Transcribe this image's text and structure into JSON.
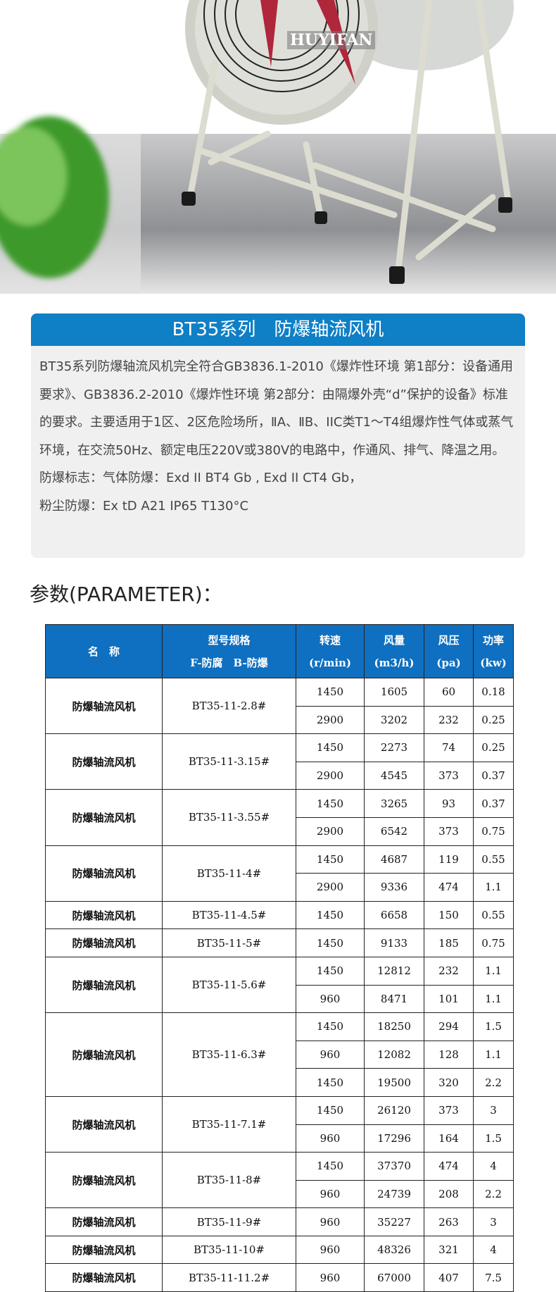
{
  "hero": {
    "brand_label": "HUYIFAN"
  },
  "intro": {
    "title": "BT35系列　防爆轴流风机",
    "paragraphs": [
      "BT35系列防爆轴流风机完全符合GB3836.1-2010《爆炸性环境 第1部分：设备通用要求》、GB3836.2-2010《爆炸性环境 第2部分：由隔爆外壳“d”保护的设备》标准的要求。主要适用于1区、2区危险场所，ⅡA、ⅡB、IIC类T1～T4组爆炸性气体或蒸气环境，在交流50Hz、额定电压220V或380V的电路中，作通风、排气、降温之用。",
      "防爆标志：气体防爆：Exd II BT4 Gb , Exd II CT4 Gb，",
      "粉尘防爆：Ex tD A21 IP65 T130°C"
    ]
  },
  "param_title": "参数(PARAMETER)：",
  "table": {
    "headers": [
      {
        "line1": "名　称",
        "line2": ""
      },
      {
        "line1": "型号规格",
        "line2": "F-防腐　B-防爆"
      },
      {
        "line1": "转速",
        "line2": "(r/min)"
      },
      {
        "line1": "风量",
        "line2": "(m3/h)"
      },
      {
        "line1": "风压",
        "line2": "(pa)"
      },
      {
        "line1": "功率",
        "line2": "(kw)"
      }
    ],
    "groups": [
      {
        "name": "防爆轴流风机",
        "model": "BT35-11-2.8#",
        "rows": [
          [
            "1450",
            "1605",
            "60",
            "0.18"
          ],
          [
            "2900",
            "3202",
            "232",
            "0.25"
          ]
        ]
      },
      {
        "name": "防爆轴流风机",
        "model": "BT35-11-3.15#",
        "rows": [
          [
            "1450",
            "2273",
            "74",
            "0.25"
          ],
          [
            "2900",
            "4545",
            "373",
            "0.37"
          ]
        ]
      },
      {
        "name": "防爆轴流风机",
        "model": "BT35-11-3.55#",
        "rows": [
          [
            "1450",
            "3265",
            "93",
            "0.37"
          ],
          [
            "2900",
            "6542",
            "373",
            "0.75"
          ]
        ]
      },
      {
        "name": "防爆轴流风机",
        "model": "BT35-11-4#",
        "rows": [
          [
            "1450",
            "4687",
            "119",
            "0.55"
          ],
          [
            "2900",
            "9336",
            "474",
            "1.1"
          ]
        ]
      },
      {
        "name": "防爆轴流风机",
        "model": "BT35-11-4.5#",
        "rows": [
          [
            "1450",
            "6658",
            "150",
            "0.55"
          ]
        ]
      },
      {
        "name": "防爆轴流风机",
        "model": "BT35-11-5#",
        "rows": [
          [
            "1450",
            "9133",
            "185",
            "0.75"
          ]
        ]
      },
      {
        "name": "防爆轴流风机",
        "model": "BT35-11-5.6#",
        "rows": [
          [
            "1450",
            "12812",
            "232",
            "1.1"
          ],
          [
            "960",
            "8471",
            "101",
            "1.1"
          ]
        ]
      },
      {
        "name": "防爆轴流风机",
        "model": "BT35-11-6.3#",
        "rows": [
          [
            "1450",
            "18250",
            "294",
            "1.5"
          ],
          [
            "960",
            "12082",
            "128",
            "1.1"
          ],
          [
            "1450",
            "19500",
            "320",
            "2.2"
          ]
        ]
      },
      {
        "name": "防爆轴流风机",
        "model": "BT35-11-7.1#",
        "rows": [
          [
            "1450",
            "26120",
            "373",
            "3"
          ],
          [
            "960",
            "17296",
            "164",
            "1.5"
          ]
        ]
      },
      {
        "name": "防爆轴流风机",
        "model": "BT35-11-8#",
        "rows": [
          [
            "1450",
            "37370",
            "474",
            "4"
          ],
          [
            "960",
            "24739",
            "208",
            "2.2"
          ]
        ]
      },
      {
        "name": "防爆轴流风机",
        "model": "BT35-11-9#",
        "rows": [
          [
            "960",
            "35227",
            "263",
            "3"
          ]
        ]
      },
      {
        "name": "防爆轴流风机",
        "model": "BT35-11-10#",
        "rows": [
          [
            "960",
            "48326",
            "321",
            "4"
          ]
        ]
      },
      {
        "name": "防爆轴流风机",
        "model": "BT35-11-11.2#",
        "rows": [
          [
            "960",
            "67000",
            "407",
            "7.5"
          ]
        ]
      }
    ]
  }
}
